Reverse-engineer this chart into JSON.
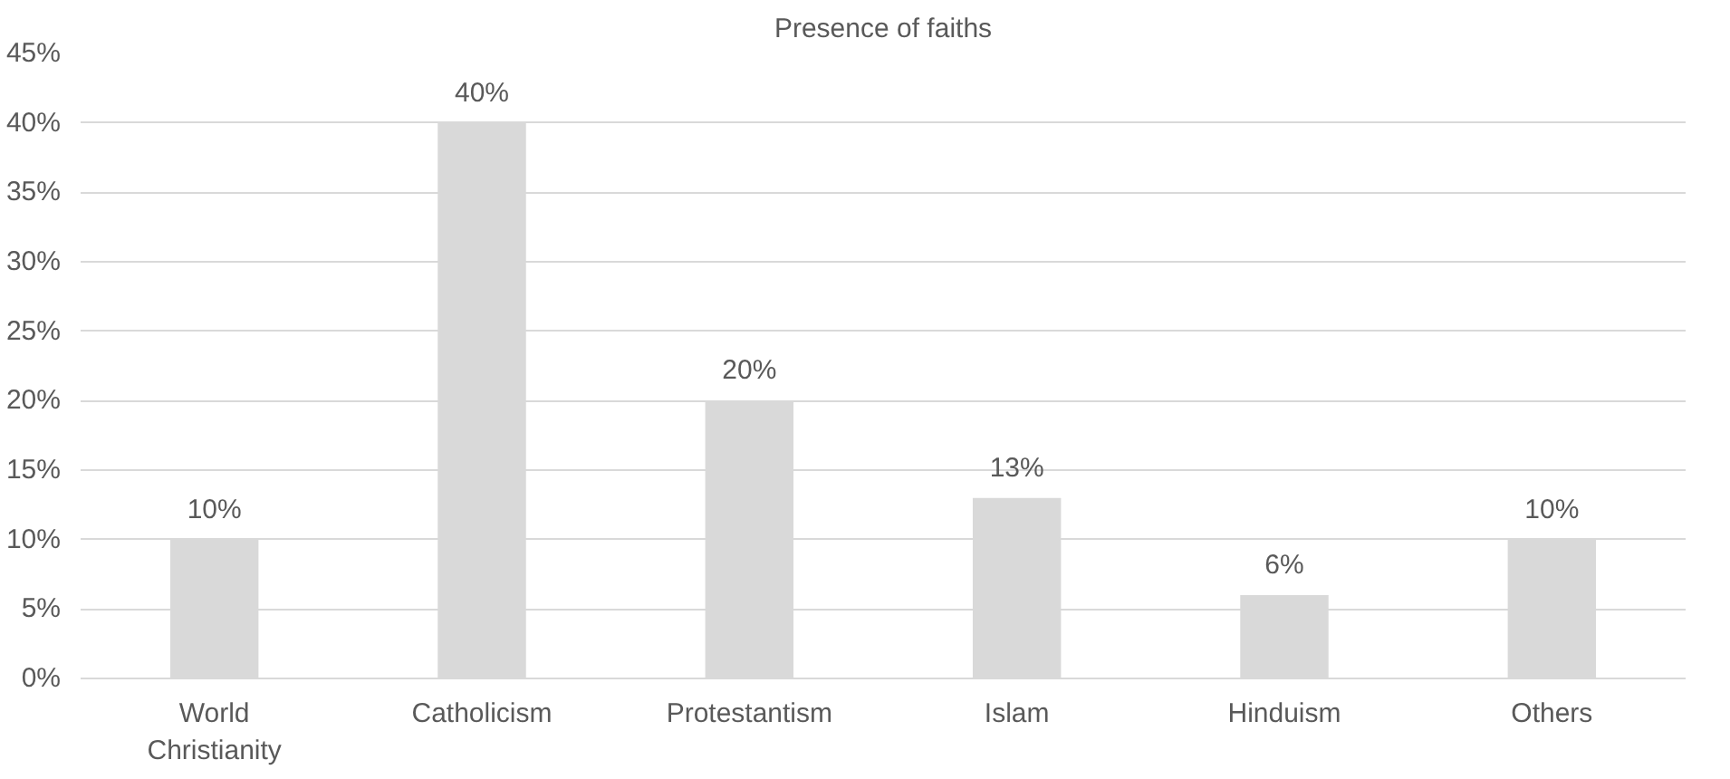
{
  "chart_data": {
    "type": "bar",
    "title": "Presence of faiths",
    "categories": [
      "World Christianity",
      "Catholicism",
      "Protestantism",
      "Islam",
      "Hinduism",
      "Others"
    ],
    "values": [
      10,
      40,
      20,
      13,
      6,
      10
    ],
    "color": "#d9d9d9",
    "ylim": [
      0,
      45
    ],
    "yticks": [
      {
        "value": 0,
        "label": "0%"
      },
      {
        "value": 5,
        "label": "5%"
      },
      {
        "value": 10,
        "label": "10%"
      },
      {
        "value": 15,
        "label": "15%"
      },
      {
        "value": 20,
        "label": "20%"
      },
      {
        "value": 25,
        "label": "25%"
      },
      {
        "value": 30,
        "label": "30%"
      },
      {
        "value": 35,
        "label": "35%"
      },
      {
        "value": 40,
        "label": "40%"
      },
      {
        "value": 45,
        "label": "45%"
      }
    ],
    "value_labels": [
      "10%",
      "40%",
      "20%",
      "13%",
      "6%",
      "10%"
    ],
    "grid": "y"
  }
}
